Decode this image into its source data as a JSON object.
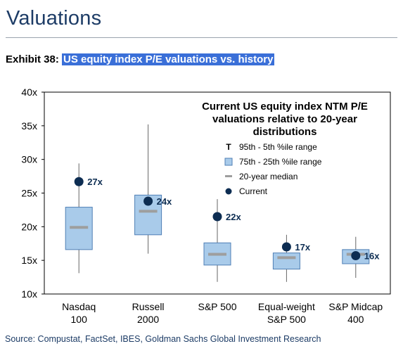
{
  "header": {
    "page_title": "Valuations",
    "exhibit_label": "Exhibit 38:",
    "exhibit_title": "US equity index P/E valuations vs. history"
  },
  "source": "Source: Compustat, FactSet, IBES, Goldman Sachs Global Investment Research",
  "colors": {
    "box_fill": "#a9cbea",
    "box_stroke": "#4f7fb5",
    "median": "#9e9e9e",
    "current": "#0d2d52",
    "title_navy": "#1d3c66"
  },
  "chart_data": {
    "type": "box",
    "title": "Current US equity index NTM P/E valuations relative to 20-year distributions",
    "title_lines": [
      "Current US equity index NTM P/E",
      "valuations relative to 20-year",
      "distributions"
    ],
    "legend_position": "top-right",
    "legend": {
      "range_symbol": "T",
      "range_label": "95th - 5th %ile range",
      "iqr_label": "75th - 25th %ile range",
      "median_label": "20-year median",
      "current_label": "Current"
    },
    "ylim": [
      10,
      40
    ],
    "yticks": [
      10,
      15,
      20,
      25,
      30,
      35,
      40
    ],
    "ytick_labels": [
      "10x",
      "15x",
      "20x",
      "25x",
      "30x",
      "35x",
      "40x"
    ],
    "grid": false,
    "categories": [
      {
        "line1": "Nasdaq",
        "line2": "100"
      },
      {
        "line1": "Russell",
        "line2": "2000"
      },
      {
        "line1": "S&P 500",
        "line2": ""
      },
      {
        "line1": "Equal-weight",
        "line2": "S&P 500"
      },
      {
        "line1": "S&P Midcap",
        "line2": "400"
      }
    ],
    "series": [
      {
        "p5": 13.1,
        "p25": 16.6,
        "median": 19.9,
        "p75": 22.9,
        "p95": 29.4,
        "current": 26.7,
        "current_label": "27x"
      },
      {
        "p5": 16.0,
        "p25": 18.8,
        "median": 22.3,
        "p75": 24.7,
        "p95": 35.2,
        "current": 23.8,
        "current_label": "24x"
      },
      {
        "p5": 11.8,
        "p25": 14.3,
        "median": 15.9,
        "p75": 17.6,
        "p95": 24.1,
        "current": 21.5,
        "current_label": "22x"
      },
      {
        "p5": 11.8,
        "p25": 13.7,
        "median": 15.4,
        "p75": 16.1,
        "p95": 18.8,
        "current": 17.0,
        "current_label": "17x"
      },
      {
        "p5": 12.4,
        "p25": 14.5,
        "median": 15.9,
        "p75": 16.6,
        "p95": 18.5,
        "current": 15.7,
        "current_label": "16x"
      }
    ]
  }
}
